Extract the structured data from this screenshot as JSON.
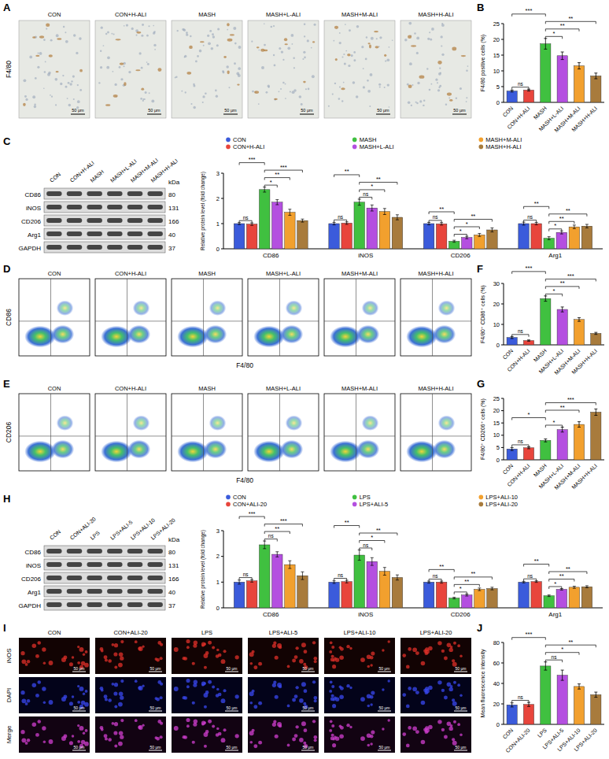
{
  "panel_letters": [
    "A",
    "B",
    "C",
    "D",
    "E",
    "F",
    "G",
    "H",
    "I",
    "J"
  ],
  "ihc": {
    "stain": "F4/80",
    "groups": [
      "CON",
      "CON+H-ALI",
      "MASH",
      "MASH+L-ALI",
      "MASH+M-ALI",
      "MASH+H-ALI"
    ],
    "scale_bar": "50 μm"
  },
  "blots": [
    {
      "lanes": [
        "CON",
        "CON+H-ALI",
        "MASH",
        "MASH+L-ALI",
        "MASH+M-ALI",
        "MASH+H-ALI"
      ],
      "proteins": [
        "CD86",
        "iNOS",
        "CD206",
        "Arg1",
        "GAPDH"
      ],
      "kda_title": "kDa",
      "kda": [
        80,
        131,
        166,
        40,
        37
      ]
    },
    {
      "lanes": [
        "CON",
        "CON+ALI-20",
        "LPS",
        "LPS+ALI-5",
        "LPS+ALI-10",
        "LPS+ALI-20"
      ],
      "proteins": [
        "CD86",
        "iNOS",
        "CD206",
        "Arg1",
        "GAPDH"
      ],
      "kda_title": "kDa",
      "kda": [
        80,
        131,
        166,
        40,
        37
      ]
    }
  ],
  "flow": [
    {
      "y_label": "CD86",
      "x_label": "F4/80",
      "groups": [
        "CON",
        "CON+H-ALI",
        "MASH",
        "MASH+L-ALI",
        "MASH+M-ALI",
        "MASH+H-ALI"
      ]
    },
    {
      "y_label": "CD206",
      "x_label": "F4/80",
      "groups": [
        "CON",
        "CON+H-ALI",
        "MASH",
        "MASH+L-ALI",
        "MASH+M-ALI",
        "MASH+H-ALI"
      ]
    }
  ],
  "if_images": {
    "rows": [
      "iNOS",
      "DAPI",
      "Merge"
    ],
    "groups": [
      "CON",
      "CON+ALI-20",
      "LPS",
      "LPS+ALI-5",
      "LPS+ALI-10",
      "LPS+ALI-20"
    ],
    "scale_bar": "50 μm"
  },
  "chart_data": [
    {
      "type": "bar",
      "y_label": "F4/80 positive cells (%)",
      "categories": [
        "CON",
        "CON+H-ALI",
        "MASH",
        "MASH+L-ALI",
        "MASH+M-ALI",
        "MASH+H-ALI"
      ],
      "values": [
        3.6,
        3.9,
        18.6,
        14.8,
        11.6,
        8.4
      ],
      "errors": [
        0.3,
        0.3,
        1.7,
        1.2,
        1.0,
        0.9
      ],
      "colors": [
        "#3b5bdb",
        "#e8453c",
        "#40c040",
        "#b44fe0",
        "#f2a02e",
        "#a87b3c"
      ],
      "ylim": [
        0,
        25
      ],
      "yticks": [
        0,
        5,
        10,
        15,
        20,
        25
      ],
      "annotations": [
        {
          "between": [
            "CON",
            "CON+H-ALI"
          ],
          "label": "ns"
        },
        {
          "between": [
            "MASH",
            "MASH+L-ALI"
          ],
          "label": "*"
        },
        {
          "between": [
            "MASH",
            "MASH+M-ALI"
          ],
          "label": "**"
        },
        {
          "between": [
            "MASH",
            "MASH+H-ALI"
          ],
          "label": "**"
        },
        {
          "between": [
            "CON",
            "MASH"
          ],
          "label": "***"
        }
      ]
    },
    {
      "type": "bar",
      "y_label": "Relative protein level (fold change)",
      "legend": "top",
      "categories": [
        "CD86",
        "iNOS",
        "CD206",
        "Arg1"
      ],
      "series": [
        {
          "name": "CON",
          "color": "#3b5bdb",
          "values": [
            1.0,
            1.0,
            1.0,
            1.0
          ],
          "errors": [
            0.04,
            0.05,
            0.05,
            0.06
          ]
        },
        {
          "name": "CON+H-ALI",
          "color": "#e8453c",
          "values": [
            0.98,
            1.02,
            0.99,
            1.0
          ],
          "errors": [
            0.05,
            0.05,
            0.05,
            0.05
          ]
        },
        {
          "name": "MASH",
          "color": "#40c040",
          "values": [
            2.35,
            1.85,
            0.3,
            0.42
          ],
          "errors": [
            0.1,
            0.12,
            0.04,
            0.06
          ]
        },
        {
          "name": "MASH+L-ALI",
          "color": "#b44fe0",
          "values": [
            1.85,
            1.62,
            0.45,
            0.65
          ],
          "errors": [
            0.1,
            0.12,
            0.05,
            0.06
          ]
        },
        {
          "name": "MASH+M-ALI",
          "color": "#f2a02e",
          "values": [
            1.45,
            1.48,
            0.55,
            0.87
          ],
          "errors": [
            0.12,
            0.12,
            0.06,
            0.07
          ]
        },
        {
          "name": "MASH+H-ALI",
          "color": "#a87b3c",
          "values": [
            1.12,
            1.25,
            0.75,
            0.9
          ],
          "errors": [
            0.06,
            0.1,
            0.08,
            0.07
          ]
        }
      ],
      "ylim": [
        0,
        3
      ],
      "yticks": [
        0,
        1,
        2,
        3
      ],
      "annotations": [
        {
          "group": "CD86",
          "between": [
            "CON",
            "CON+H-ALI"
          ],
          "label": "ns"
        },
        {
          "group": "CD86",
          "between": [
            "MASH",
            "MASH+L-ALI"
          ],
          "label": "*"
        },
        {
          "group": "CD86",
          "between": [
            "MASH",
            "MASH+M-ALI"
          ],
          "label": "**"
        },
        {
          "group": "CD86",
          "between": [
            "MASH",
            "MASH+H-ALI"
          ],
          "label": "***"
        },
        {
          "group": "CD86",
          "between": [
            "CON",
            "MASH"
          ],
          "label": "***"
        },
        {
          "group": "iNOS",
          "between": [
            "CON",
            "CON+H-ALI"
          ],
          "label": "ns"
        },
        {
          "group": "iNOS",
          "between": [
            "MASH",
            "MASH+L-ALI"
          ],
          "label": "ns"
        },
        {
          "group": "iNOS",
          "between": [
            "MASH",
            "MASH+M-ALI"
          ],
          "label": "*"
        },
        {
          "group": "iNOS",
          "between": [
            "MASH",
            "MASH+H-ALI"
          ],
          "label": "**"
        },
        {
          "group": "iNOS",
          "between": [
            "CON",
            "MASH"
          ],
          "label": "**"
        },
        {
          "group": "CD206",
          "between": [
            "CON",
            "CON+H-ALI"
          ],
          "label": "ns"
        },
        {
          "group": "CD206",
          "between": [
            "MASH",
            "MASH+L-ALI"
          ],
          "label": "*"
        },
        {
          "group": "CD206",
          "between": [
            "MASH",
            "MASH+M-ALI"
          ],
          "label": "*"
        },
        {
          "group": "CD206",
          "between": [
            "MASH",
            "MASH+H-ALI"
          ],
          "label": "**"
        },
        {
          "group": "CD206",
          "between": [
            "CON",
            "MASH"
          ],
          "label": "**"
        },
        {
          "group": "Arg1",
          "between": [
            "CON",
            "CON+H-ALI"
          ],
          "label": "ns"
        },
        {
          "group": "Arg1",
          "between": [
            "MASH",
            "MASH+L-ALI"
          ],
          "label": "*"
        },
        {
          "group": "Arg1",
          "between": [
            "MASH",
            "MASH+M-ALI"
          ],
          "label": "**"
        },
        {
          "group": "Arg1",
          "between": [
            "MASH",
            "MASH+H-ALI"
          ],
          "label": "**"
        },
        {
          "group": "Arg1",
          "between": [
            "CON",
            "MASH"
          ],
          "label": "**"
        }
      ]
    },
    {
      "type": "bar",
      "y_label": "F4/80⁺ CD86⁺ cells (%)",
      "categories": [
        "CON",
        "CON+H-ALI",
        "MASH",
        "MASH+L-ALI",
        "MASH+M-ALI",
        "MASH+H-ALI"
      ],
      "values": [
        3.6,
        2.1,
        22.6,
        17.3,
        12.4,
        5.6
      ],
      "errors": [
        0.5,
        0.3,
        1.3,
        1.2,
        0.9,
        0.5
      ],
      "colors": [
        "#3b5bdb",
        "#e8453c",
        "#40c040",
        "#b44fe0",
        "#f2a02e",
        "#a87b3c"
      ],
      "ylim": [
        0,
        30
      ],
      "yticks": [
        0,
        10,
        20,
        30
      ],
      "annotations": [
        {
          "between": [
            "CON",
            "CON+H-ALI"
          ],
          "label": "ns"
        },
        {
          "between": [
            "MASH",
            "MASH+L-ALI"
          ],
          "label": "*"
        },
        {
          "between": [
            "MASH",
            "MASH+M-ALI"
          ],
          "label": "**"
        },
        {
          "between": [
            "MASH",
            "MASH+H-ALI"
          ],
          "label": "***"
        },
        {
          "between": [
            "CON",
            "MASH"
          ],
          "label": "***"
        }
      ]
    },
    {
      "type": "bar",
      "y_label": "F4/80⁺ CD206⁺ cells (%)",
      "categories": [
        "CON",
        "CON+H-ALI",
        "MASH",
        "MASH+L-ALI",
        "MASH+M-ALI",
        "MASH+H-ALI"
      ],
      "values": [
        4.4,
        4.9,
        7.9,
        12.3,
        14.4,
        19.4
      ],
      "errors": [
        0.6,
        0.4,
        0.6,
        1.0,
        1.1,
        1.3
      ],
      "colors": [
        "#3b5bdb",
        "#e8453c",
        "#40c040",
        "#b44fe0",
        "#f2a02e",
        "#a87b3c"
      ],
      "ylim": [
        0,
        25
      ],
      "yticks": [
        0,
        5,
        10,
        15,
        20,
        25
      ],
      "annotations": [
        {
          "between": [
            "CON",
            "CON+H-ALI"
          ],
          "label": "ns"
        },
        {
          "between": [
            "MASH",
            "MASH+L-ALI"
          ],
          "label": "*"
        },
        {
          "between": [
            "CON",
            "MASH"
          ],
          "label": "*"
        },
        {
          "between": [
            "MASH",
            "MASH+M-ALI"
          ],
          "label": "**"
        },
        {
          "between": [
            "MASH",
            "MASH+H-ALI"
          ],
          "label": "***"
        }
      ]
    },
    {
      "type": "bar",
      "y_label": "Relative protein level (fold change)",
      "legend": "top",
      "categories": [
        "CD86",
        "iNOS",
        "CD206",
        "Arg1"
      ],
      "series": [
        {
          "name": "CON",
          "color": "#3b5bdb",
          "values": [
            1.0,
            1.0,
            1.0,
            1.0
          ],
          "errors": [
            0.08,
            0.05,
            0.04,
            0.03
          ]
        },
        {
          "name": "CON+ALI-20",
          "color": "#e8453c",
          "values": [
            1.05,
            1.02,
            1.0,
            1.02
          ],
          "errors": [
            0.05,
            0.05,
            0.04,
            0.03
          ]
        },
        {
          "name": "LPS",
          "color": "#40c040",
          "values": [
            2.45,
            2.05,
            0.38,
            0.47
          ],
          "errors": [
            0.15,
            0.2,
            0.03,
            0.03
          ]
        },
        {
          "name": "LPS+ALI-5",
          "color": "#b44fe0",
          "values": [
            2.08,
            1.8,
            0.5,
            0.72
          ],
          "errors": [
            0.1,
            0.15,
            0.04,
            0.03
          ]
        },
        {
          "name": "LPS+ALI-10",
          "color": "#f2a02e",
          "values": [
            1.68,
            1.42,
            0.72,
            0.8
          ],
          "errors": [
            0.15,
            0.15,
            0.05,
            0.04
          ]
        },
        {
          "name": "LPS+ALI-20",
          "color": "#a87b3c",
          "values": [
            1.25,
            1.18,
            0.75,
            0.82
          ],
          "errors": [
            0.15,
            0.1,
            0.05,
            0.04
          ]
        }
      ],
      "ylim": [
        0,
        3
      ],
      "yticks": [
        0,
        1,
        2,
        3
      ],
      "annotations": [
        {
          "group": "CD86",
          "between": [
            "CON",
            "CON+ALI-20"
          ],
          "label": "ns"
        },
        {
          "group": "CD86",
          "between": [
            "LPS",
            "LPS+ALI-5"
          ],
          "label": "ns"
        },
        {
          "group": "CD86",
          "between": [
            "LPS",
            "LPS+ALI-10"
          ],
          "label": "**"
        },
        {
          "group": "CD86",
          "between": [
            "LPS",
            "LPS+ALI-20"
          ],
          "label": "***"
        },
        {
          "group": "CD86",
          "between": [
            "CON",
            "LPS"
          ],
          "label": "***"
        },
        {
          "group": "iNOS",
          "between": [
            "CON",
            "CON+ALI-20"
          ],
          "label": "ns"
        },
        {
          "group": "iNOS",
          "between": [
            "LPS",
            "LPS+ALI-5"
          ],
          "label": "ns"
        },
        {
          "group": "iNOS",
          "between": [
            "LPS",
            "LPS+ALI-10"
          ],
          "label": "*"
        },
        {
          "group": "iNOS",
          "between": [
            "LPS",
            "LPS+ALI-20"
          ],
          "label": "**"
        },
        {
          "group": "iNOS",
          "between": [
            "CON",
            "LPS"
          ],
          "label": "**"
        },
        {
          "group": "CD206",
          "between": [
            "CON",
            "CON+ALI-20"
          ],
          "label": "ns"
        },
        {
          "group": "CD206",
          "between": [
            "LPS",
            "LPS+ALI-5"
          ],
          "label": "*"
        },
        {
          "group": "CD206",
          "between": [
            "LPS",
            "LPS+ALI-10"
          ],
          "label": "**"
        },
        {
          "group": "CD206",
          "between": [
            "LPS",
            "LPS+ALI-20"
          ],
          "label": "**"
        },
        {
          "group": "CD206",
          "between": [
            "CON",
            "LPS"
          ],
          "label": "**"
        },
        {
          "group": "Arg1",
          "between": [
            "CON",
            "CON+ALI-20"
          ],
          "label": "ns"
        },
        {
          "group": "Arg1",
          "between": [
            "LPS",
            "LPS+ALI-5"
          ],
          "label": "*"
        },
        {
          "group": "Arg1",
          "between": [
            "LPS",
            "LPS+ALI-10"
          ],
          "label": "**"
        },
        {
          "group": "Arg1",
          "between": [
            "LPS",
            "LPS+ALI-20"
          ],
          "label": "**"
        },
        {
          "group": "Arg1",
          "between": [
            "CON",
            "LPS"
          ],
          "label": "**"
        }
      ]
    },
    {
      "type": "bar",
      "y_label": "Mean fluorescence intensity",
      "categories": [
        "CON",
        "CON+ALI-20",
        "LPS",
        "LPS+ALI-5",
        "LPS+ALI-10",
        "LPS+ALI-20"
      ],
      "values": [
        19,
        19.5,
        57,
        48,
        37,
        29
      ],
      "errors": [
        2,
        2,
        4,
        5,
        2.5,
        2.5
      ],
      "colors": [
        "#3b5bdb",
        "#e8453c",
        "#40c040",
        "#b44fe0",
        "#f2a02e",
        "#a87b3c"
      ],
      "ylim": [
        0,
        80
      ],
      "yticks": [
        0,
        20,
        40,
        60,
        80
      ],
      "annotations": [
        {
          "between": [
            "CON",
            "CON+ALI-20"
          ],
          "label": "ns"
        },
        {
          "between": [
            "LPS",
            "LPS+ALI-5"
          ],
          "label": "ns"
        },
        {
          "between": [
            "LPS",
            "LPS+ALI-10"
          ],
          "label": "*"
        },
        {
          "between": [
            "LPS",
            "LPS+ALI-20"
          ],
          "label": "**"
        },
        {
          "between": [
            "CON",
            "LPS"
          ],
          "label": "***"
        }
      ]
    }
  ]
}
